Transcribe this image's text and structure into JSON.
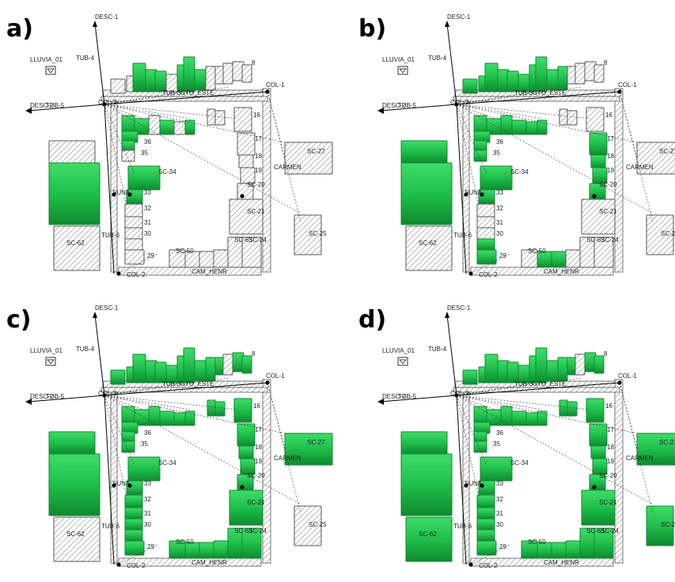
{
  "figure": {
    "panels": [
      {
        "letter": "a)",
        "id": "a",
        "green_level": 0
      },
      {
        "letter": "b)",
        "id": "b",
        "green_level": 1
      },
      {
        "letter": "c)",
        "id": "c",
        "green_level": 2
      },
      {
        "letter": "d)",
        "id": "d",
        "green_level": 3
      }
    ],
    "colors": {
      "green": "#1fbf4b",
      "green_dark": "#118a32",
      "hatch": "#9a9a9a",
      "line": "#000000",
      "paper": "#ffffff"
    },
    "labels": {
      "desc1": "DESC-1",
      "desc2": "DESC-2",
      "lluvia": "LLUVIA_01",
      "tub4": "TUB-4",
      "tub5": "TUB-5",
      "tub3": "TUB-3",
      "tub6": "TUB-6",
      "gto": "GTO_ESTE",
      "col1": "COL-1",
      "col2": "COL-2",
      "col3": "COL-3",
      "carmen": "CARMEN",
      "cam_henr": "CAM_HENR",
      "sc27": "SC-27",
      "sc25": "SC-25",
      "sc62": "SC-62",
      "sc24": "SC-24",
      "sc63": "SC-63",
      "sc21": "SC-21",
      "sc20": "SC-20",
      "n19": "19",
      "n18": "18",
      "n17": "17",
      "n16": "16",
      "n36": "36",
      "n35": "35",
      "sc34": "SC-34",
      "n33": "33",
      "n32": "32",
      "n31": "31",
      "n30": "30",
      "n29": "29",
      "sc50": "SC-50",
      "n8": "8",
      "suna": "SUNA"
    }
  }
}
